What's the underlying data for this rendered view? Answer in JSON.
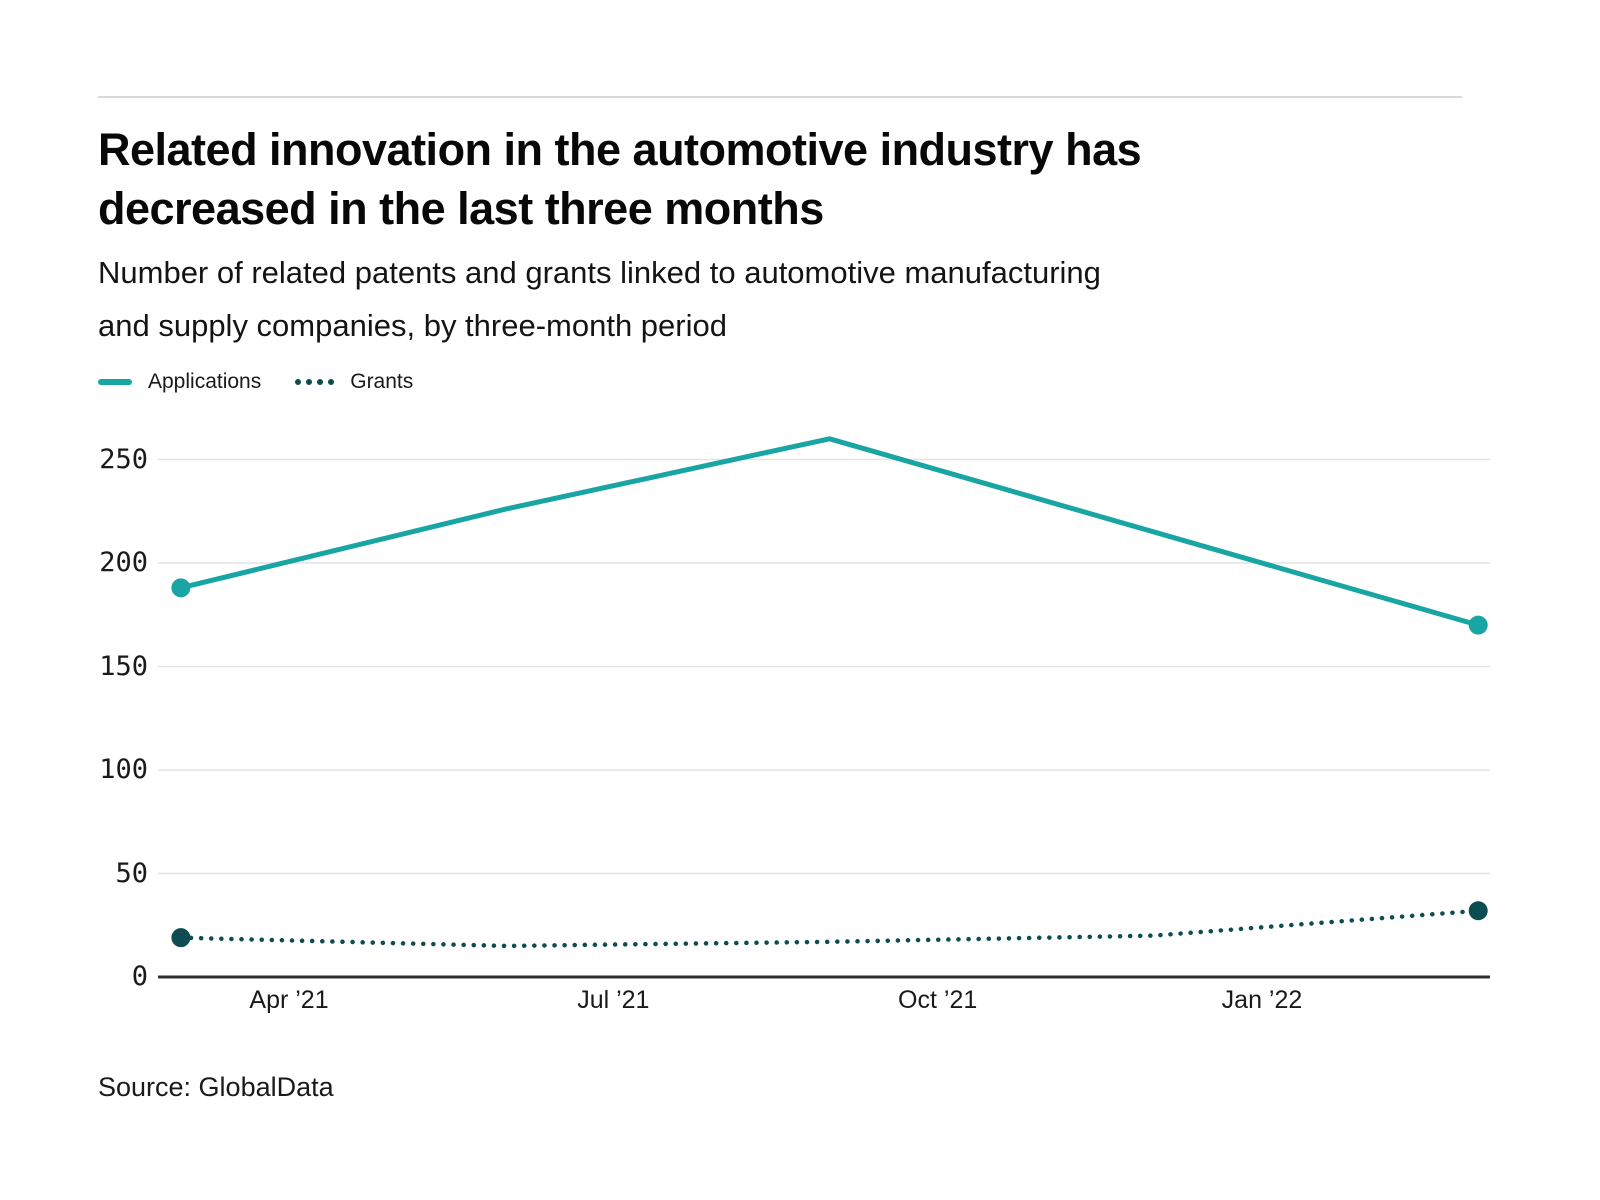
{
  "header": {
    "title_lines": [
      "Related innovation in the automotive industry has",
      "decreased in the last three months"
    ],
    "subtitle_lines": [
      "Number of related patents and grants linked to automotive manufacturing",
      "and supply companies, by three-month period"
    ]
  },
  "source": "Source: GlobalData",
  "chart_data": {
    "type": "line",
    "title": "Related innovation in the automotive industry has decreased in the last three months",
    "subtitle": "Number of related patents and grants linked to automotive manufacturing and supply companies, by three-month period",
    "x": [
      0,
      3,
      6,
      9,
      12
    ],
    "x_tick_positions": [
      1,
      4,
      7,
      10
    ],
    "x_tick_labels": [
      "Apr ’21",
      "Jul ’21",
      "Oct ’21",
      "Jan ’22"
    ],
    "y_ticks": [
      0,
      50,
      100,
      150,
      200,
      250
    ],
    "ylim": [
      0,
      270
    ],
    "grid": "horizontal",
    "legend_position": "top-left",
    "series": [
      {
        "name": "Applications",
        "style": "solid",
        "color": "#19a5a3",
        "endpoint_markers": true,
        "values": [
          188,
          226,
          260,
          215,
          170
        ]
      },
      {
        "name": "Grants",
        "style": "dotted",
        "color": "#0d4d52",
        "endpoint_markers": true,
        "values": [
          19,
          15,
          17,
          20,
          32
        ]
      }
    ],
    "source": "Source: GlobalData"
  }
}
